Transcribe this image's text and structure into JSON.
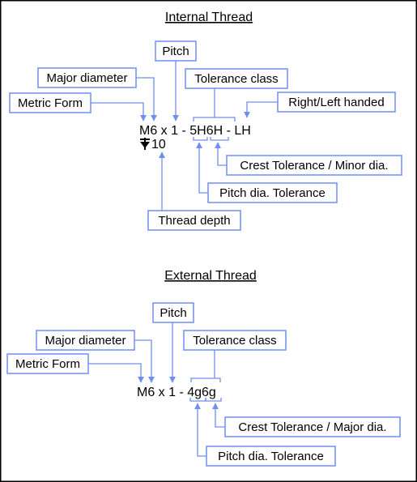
{
  "colors": {
    "accent": "#6f8ff0",
    "border": "#000000",
    "text": "#000000"
  },
  "internal": {
    "title": "Internal Thread",
    "callout": "M6 x 1 - 5H6H - LH",
    "depth_symbol": "depth-symbol",
    "depth_value": "10",
    "labels": {
      "pitch": "Pitch",
      "major_diameter": "Major diameter",
      "tolerance_class": "Tolerance class",
      "metric_form": "Metric Form",
      "handedness": "Right/Left handed",
      "crest_tolerance": "Crest Tolerance / Minor dia.",
      "pitch_dia_tolerance": "Pitch dia. Tolerance",
      "thread_depth": "Thread depth"
    }
  },
  "external": {
    "title": "External Thread",
    "callout": "M6 x 1 - 4g6g",
    "labels": {
      "pitch": "Pitch",
      "major_diameter": "Major diameter",
      "tolerance_class": "Tolerance class",
      "metric_form": "Metric Form",
      "crest_tolerance": "Crest Tolerance / Major dia.",
      "pitch_dia_tolerance": "Pitch dia. Tolerance"
    }
  }
}
